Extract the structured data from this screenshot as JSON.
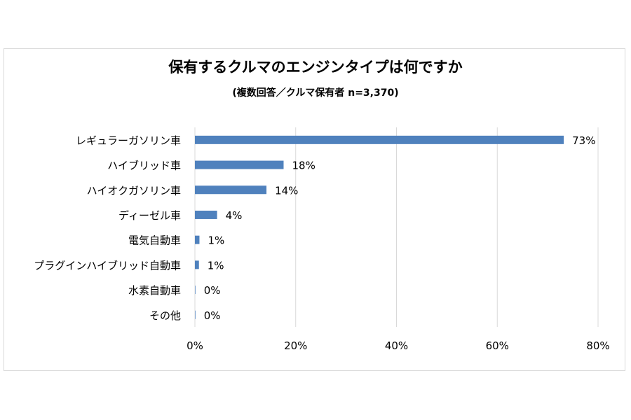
{
  "chart_data": {
    "type": "bar",
    "orientation": "horizontal",
    "title": "保有するクルマのエンジンタイプは何ですか",
    "subtitle": "(複数回答／クルマ保有者 n=3,370)",
    "categories": [
      "レギュラーガソリン車",
      "ハイブリッド車",
      "ハイオクガソリン車",
      "ディーゼル車",
      "電気自動車",
      "プラグインハイブリッド自動車",
      "水素自動車",
      "その他"
    ],
    "values": [
      73.2,
      17.6,
      14.2,
      4.4,
      0.9,
      0.8,
      0.1,
      0.1
    ],
    "value_labels": [
      "73%",
      "18%",
      "14%",
      "4%",
      "1%",
      "1%",
      "0%",
      "0%"
    ],
    "xlim": [
      0,
      80
    ],
    "xticks": [
      0,
      20,
      40,
      60,
      80
    ],
    "xtick_labels": [
      "0%",
      "20%",
      "40%",
      "60%",
      "80%"
    ],
    "grid": "vertical",
    "legend": "none",
    "bar_color": "#4f81bd",
    "grid_color": "#d9d9d9"
  }
}
